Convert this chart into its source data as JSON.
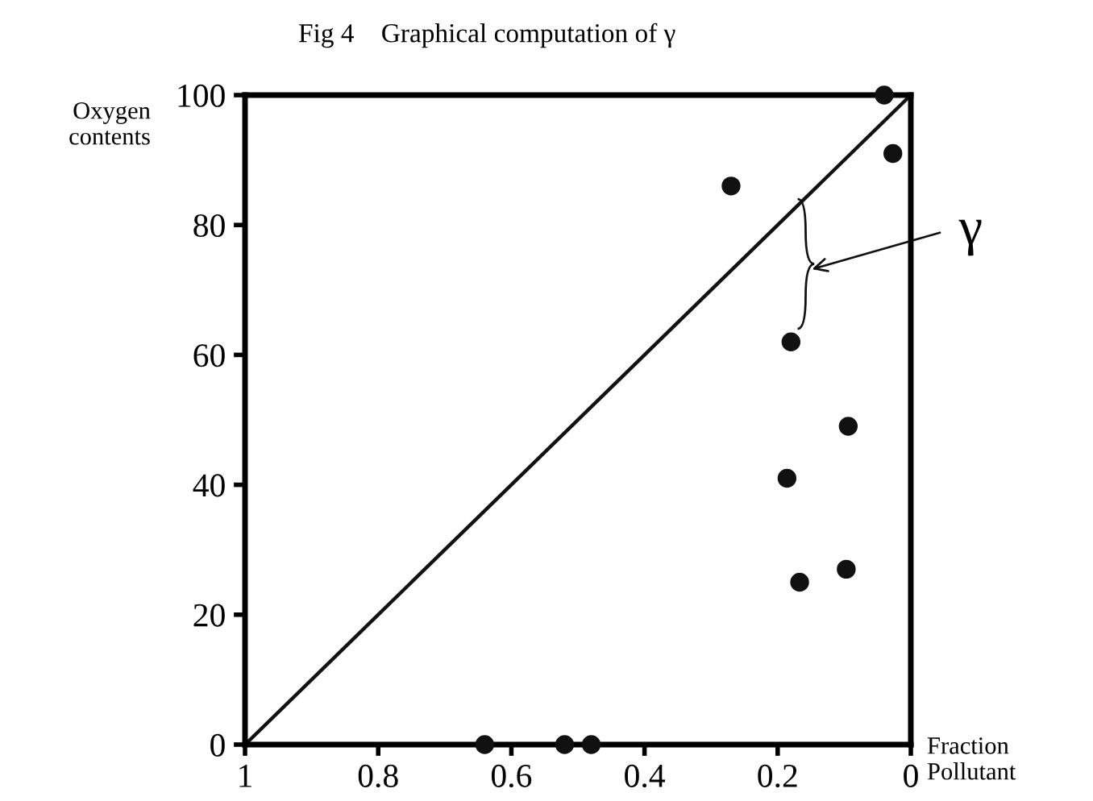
{
  "chart_data": {
    "type": "scatter",
    "title": "Fig 4    Graphical computation of γ",
    "xlabel": "Fraction\nPollutant",
    "ylabel": "Oxygen\ncontents",
    "series": [
      {
        "marker": "circle",
        "color": "#111111",
        "x": [
          0.04,
          0.027,
          0.27,
          0.18,
          0.094,
          0.186,
          0.167,
          0.097,
          0.64,
          0.52,
          0.48
        ],
        "values": [
          100,
          91,
          86,
          62,
          49,
          41,
          25,
          27,
          0,
          0,
          0
        ]
      },
      {
        "type": "line",
        "color": "#111111",
        "x": [
          1,
          0
        ],
        "values": [
          0,
          100
        ]
      }
    ],
    "annotations": [
      "γ"
    ],
    "xlim": [
      1,
      0
    ],
    "ylim": [
      0,
      100
    ],
    "xticks": [
      1,
      0.8,
      0.6,
      0.4,
      0.2,
      0
    ],
    "yticks": [
      0,
      20,
      40,
      60,
      80,
      100
    ],
    "grid": false,
    "legend": false
  }
}
